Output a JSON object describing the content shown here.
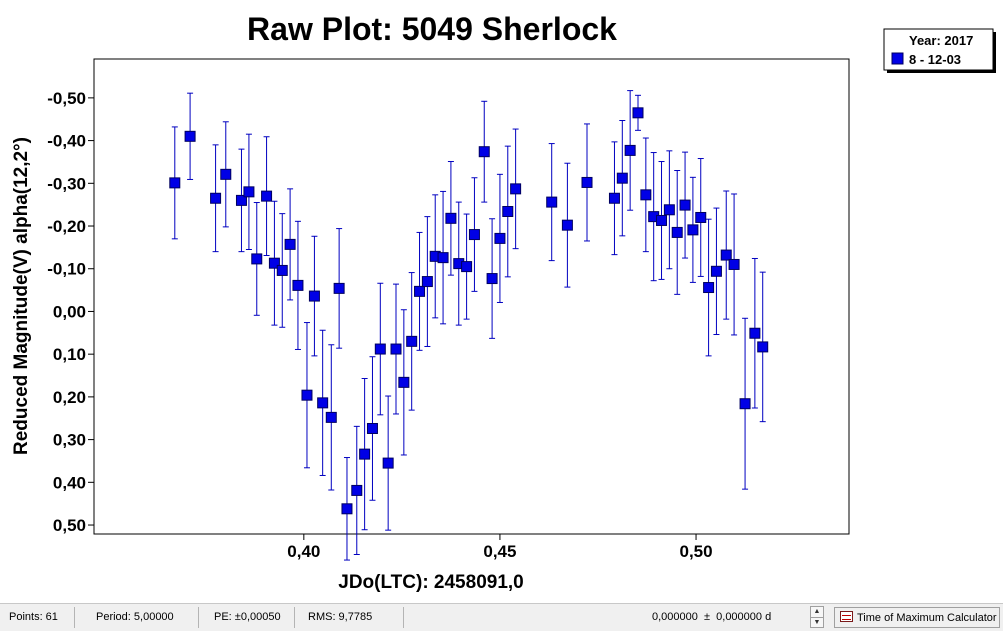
{
  "chart_data": {
    "type": "scatter",
    "title": "Raw Plot: 5049 Sherlock",
    "xlabel": "JDo(LTC): 2458091,0",
    "ylabel": "Reduced Magnitude(V) alpha(12,2°)",
    "xlim": [
      0.3465,
      0.539
    ],
    "ylim": [
      -0.591,
      0.521
    ],
    "y_inverted": true,
    "grid": false,
    "x_ticks": [
      0.4,
      0.45,
      0.5
    ],
    "x_tick_labels": [
      "0,40",
      "0,45",
      "0,50"
    ],
    "y_ticks": [
      -0.5,
      -0.4,
      -0.3,
      -0.2,
      -0.1,
      0.0,
      0.1,
      0.2,
      0.3,
      0.4,
      0.5
    ],
    "y_tick_labels": [
      "-0,50",
      "-0,40",
      "-0,30",
      "-0,20",
      "-0,10",
      "0,00",
      "0,10",
      "0,20",
      "0,30",
      "0,40",
      "0,50"
    ],
    "marker_color": "#0000e6",
    "marker_edge_color": "#000060",
    "errorbar_color": "#0000c0",
    "series": [
      {
        "legend_label": "8 - 12-03",
        "points": [
          {
            "x": 0.3671,
            "y": -0.301,
            "err": 0.131
          },
          {
            "x": 0.371,
            "y": -0.41,
            "err": 0.101
          },
          {
            "x": 0.3775,
            "y": -0.265,
            "err": 0.125
          },
          {
            "x": 0.3801,
            "y": -0.321,
            "err": 0.123
          },
          {
            "x": 0.3841,
            "y": -0.26,
            "err": 0.12
          },
          {
            "x": 0.386,
            "y": -0.28,
            "err": 0.135
          },
          {
            "x": 0.388,
            "y": -0.123,
            "err": 0.132
          },
          {
            "x": 0.3905,
            "y": -0.27,
            "err": 0.139
          },
          {
            "x": 0.3925,
            "y": -0.113,
            "err": 0.145
          },
          {
            "x": 0.3945,
            "y": -0.096,
            "err": 0.133
          },
          {
            "x": 0.3965,
            "y": -0.157,
            "err": 0.13
          },
          {
            "x": 0.3985,
            "y": -0.061,
            "err": 0.15
          },
          {
            "x": 0.4008,
            "y": 0.196,
            "err": 0.17
          },
          {
            "x": 0.4027,
            "y": -0.036,
            "err": 0.14
          },
          {
            "x": 0.4048,
            "y": 0.214,
            "err": 0.17
          },
          {
            "x": 0.407,
            "y": 0.248,
            "err": 0.17
          },
          {
            "x": 0.409,
            "y": -0.054,
            "err": 0.14
          },
          {
            "x": 0.411,
            "y": 0.462,
            "err": 0.12
          },
          {
            "x": 0.4135,
            "y": 0.419,
            "err": 0.15
          },
          {
            "x": 0.4155,
            "y": 0.334,
            "err": 0.177
          },
          {
            "x": 0.4175,
            "y": 0.274,
            "err": 0.168
          },
          {
            "x": 0.4195,
            "y": 0.088,
            "err": 0.154
          },
          {
            "x": 0.4215,
            "y": 0.355,
            "err": 0.157
          },
          {
            "x": 0.4235,
            "y": 0.088,
            "err": 0.152
          },
          {
            "x": 0.4255,
            "y": 0.166,
            "err": 0.17
          },
          {
            "x": 0.4275,
            "y": 0.07,
            "err": 0.161
          },
          {
            "x": 0.4295,
            "y": -0.047,
            "err": 0.138
          },
          {
            "x": 0.4315,
            "y": -0.07,
            "err": 0.152
          },
          {
            "x": 0.4335,
            "y": -0.129,
            "err": 0.144
          },
          {
            "x": 0.4355,
            "y": -0.126,
            "err": 0.155
          },
          {
            "x": 0.4375,
            "y": -0.218,
            "err": 0.133
          },
          {
            "x": 0.4395,
            "y": -0.112,
            "err": 0.144
          },
          {
            "x": 0.4415,
            "y": -0.105,
            "err": 0.123
          },
          {
            "x": 0.4435,
            "y": -0.18,
            "err": 0.133
          },
          {
            "x": 0.446,
            "y": -0.374,
            "err": 0.118
          },
          {
            "x": 0.448,
            "y": -0.077,
            "err": 0.14
          },
          {
            "x": 0.45,
            "y": -0.171,
            "err": 0.15
          },
          {
            "x": 0.452,
            "y": -0.234,
            "err": 0.153
          },
          {
            "x": 0.454,
            "y": -0.287,
            "err": 0.14
          },
          {
            "x": 0.4632,
            "y": -0.256,
            "err": 0.137
          },
          {
            "x": 0.4672,
            "y": -0.202,
            "err": 0.145
          },
          {
            "x": 0.4722,
            "y": -0.302,
            "err": 0.137
          },
          {
            "x": 0.4792,
            "y": -0.265,
            "err": 0.132
          },
          {
            "x": 0.4812,
            "y": -0.312,
            "err": 0.135
          },
          {
            "x": 0.4832,
            "y": -0.377,
            "err": 0.14
          },
          {
            "x": 0.4852,
            "y": -0.465,
            "err": 0.041
          },
          {
            "x": 0.4872,
            "y": -0.273,
            "err": 0.133
          },
          {
            "x": 0.4892,
            "y": -0.222,
            "err": 0.15
          },
          {
            "x": 0.4912,
            "y": -0.213,
            "err": 0.138
          },
          {
            "x": 0.4932,
            "y": -0.238,
            "err": 0.138
          },
          {
            "x": 0.4952,
            "y": -0.185,
            "err": 0.145
          },
          {
            "x": 0.4972,
            "y": -0.249,
            "err": 0.124
          },
          {
            "x": 0.4992,
            "y": -0.191,
            "err": 0.123
          },
          {
            "x": 0.5012,
            "y": -0.22,
            "err": 0.138
          },
          {
            "x": 0.5032,
            "y": -0.056,
            "err": 0.16
          },
          {
            "x": 0.5052,
            "y": -0.094,
            "err": 0.148
          },
          {
            "x": 0.5077,
            "y": -0.132,
            "err": 0.15
          },
          {
            "x": 0.5097,
            "y": -0.11,
            "err": 0.165
          },
          {
            "x": 0.5125,
            "y": 0.216,
            "err": 0.2
          },
          {
            "x": 0.515,
            "y": 0.051,
            "err": 0.175
          },
          {
            "x": 0.517,
            "y": 0.083,
            "err": 0.175
          }
        ]
      }
    ],
    "legend": {
      "position": "top-right",
      "header": "Year: 2017"
    }
  },
  "status_bar": {
    "points": "Points: 61",
    "period": "Period: 5,00000",
    "pe": "PE: ±0,00050",
    "rms": "RMS: 9,7785",
    "offset": "0,000000  ±  0,000000 d",
    "spin_up": "▲",
    "spin_down": "▼",
    "calculator_button": "Time of Maximum Calculator"
  }
}
